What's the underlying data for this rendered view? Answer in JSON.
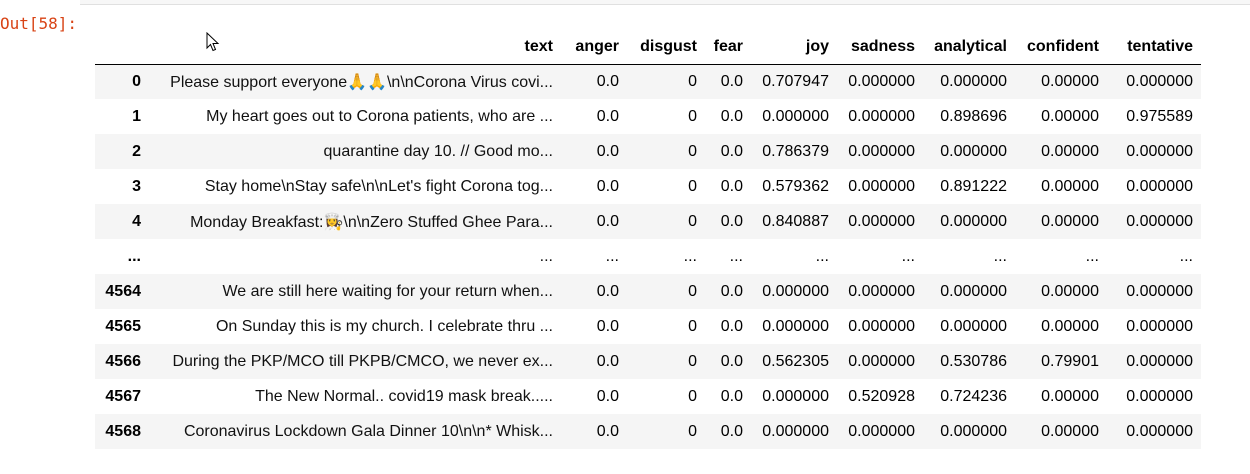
{
  "cell": {
    "prompt": "Out[58]:"
  },
  "table": {
    "columns": [
      "text",
      "anger",
      "disgust",
      "fear",
      "joy",
      "sadness",
      "analytical",
      "confident",
      "tentative"
    ],
    "rows": [
      {
        "index": "0",
        "text": "Please support everyone🙏🙏\\n\\nCorona Virus covi...",
        "anger": "0.0",
        "disgust": "0",
        "fear": "0.0",
        "joy": "0.707947",
        "sadness": "0.000000",
        "analytical": "0.000000",
        "confident": "0.00000",
        "tentative": "0.000000"
      },
      {
        "index": "1",
        "text": "My heart goes out to Corona patients, who are ...",
        "anger": "0.0",
        "disgust": "0",
        "fear": "0.0",
        "joy": "0.000000",
        "sadness": "0.000000",
        "analytical": "0.898696",
        "confident": "0.00000",
        "tentative": "0.975589"
      },
      {
        "index": "2",
        "text": "quarantine day 10. // Good mo...",
        "anger": "0.0",
        "disgust": "0",
        "fear": "0.0",
        "joy": "0.786379",
        "sadness": "0.000000",
        "analytical": "0.000000",
        "confident": "0.00000",
        "tentative": "0.000000"
      },
      {
        "index": "3",
        "text": "Stay home\\nStay safe\\n\\nLet's fight Corona tog...",
        "anger": "0.0",
        "disgust": "0",
        "fear": "0.0",
        "joy": "0.579362",
        "sadness": "0.000000",
        "analytical": "0.891222",
        "confident": "0.00000",
        "tentative": "0.000000"
      },
      {
        "index": "4",
        "text": "Monday Breakfast:👩‍🍳\\n\\nZero Stuffed Ghee Para...",
        "anger": "0.0",
        "disgust": "0",
        "fear": "0.0",
        "joy": "0.840887",
        "sadness": "0.000000",
        "analytical": "0.000000",
        "confident": "0.00000",
        "tentative": "0.000000"
      },
      {
        "index": "...",
        "text": "...",
        "anger": "...",
        "disgust": "...",
        "fear": "...",
        "joy": "...",
        "sadness": "...",
        "analytical": "...",
        "confident": "...",
        "tentative": "..."
      },
      {
        "index": "4564",
        "text": "We are still here waiting for your return when...",
        "anger": "0.0",
        "disgust": "0",
        "fear": "0.0",
        "joy": "0.000000",
        "sadness": "0.000000",
        "analytical": "0.000000",
        "confident": "0.00000",
        "tentative": "0.000000"
      },
      {
        "index": "4565",
        "text": "On Sunday this is my church. I celebrate thru ...",
        "anger": "0.0",
        "disgust": "0",
        "fear": "0.0",
        "joy": "0.000000",
        "sadness": "0.000000",
        "analytical": "0.000000",
        "confident": "0.00000",
        "tentative": "0.000000"
      },
      {
        "index": "4566",
        "text": "During the PKP/MCO till PKPB/CMCO, we never ex...",
        "anger": "0.0",
        "disgust": "0",
        "fear": "0.0",
        "joy": "0.562305",
        "sadness": "0.000000",
        "analytical": "0.530786",
        "confident": "0.79901",
        "tentative": "0.000000"
      },
      {
        "index": "4567",
        "text": "The New Normal.. covid19 mask break.....",
        "anger": "0.0",
        "disgust": "0",
        "fear": "0.0",
        "joy": "0.000000",
        "sadness": "0.520928",
        "analytical": "0.724236",
        "confident": "0.00000",
        "tentative": "0.000000"
      },
      {
        "index": "4568",
        "text": "Coronavirus Lockdown Gala Dinner 10\\n\\n* Whisk...",
        "anger": "0.0",
        "disgust": "0",
        "fear": "0.0",
        "joy": "0.000000",
        "sadness": "0.000000",
        "analytical": "0.000000",
        "confident": "0.00000",
        "tentative": "0.000000"
      }
    ]
  },
  "icons": {
    "cursor": "mouse-pointer-icon"
  }
}
